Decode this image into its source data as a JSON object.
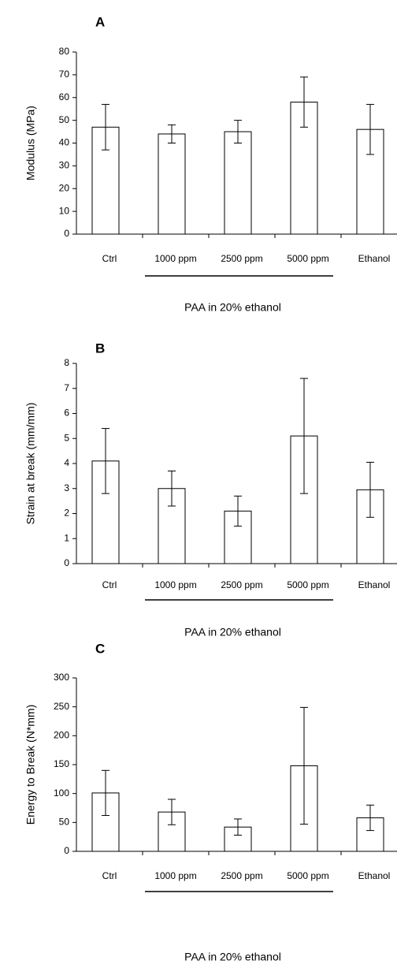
{
  "chart_data": [
    {
      "type": "bar",
      "panel_label": "A",
      "ylabel": "Modulus (MPa)",
      "categories": [
        "Ctrl",
        "1000 ppm",
        "2500 ppm",
        "5000 ppm",
        "Ethanol"
      ],
      "values": [
        47,
        44,
        45,
        58,
        46
      ],
      "error": [
        10,
        4,
        5,
        11,
        11
      ],
      "ylim": [
        0,
        80
      ],
      "yticks": [
        0,
        10,
        20,
        30,
        40,
        50,
        60,
        70,
        80
      ],
      "group_label": "PAA in 20% ethanol",
      "grid": false
    },
    {
      "type": "bar",
      "panel_label": "B",
      "ylabel": "Strain at break (mm/mm)",
      "categories": [
        "Ctrl",
        "1000 ppm",
        "2500 ppm",
        "5000 ppm",
        "Ethanol"
      ],
      "values": [
        4.1,
        3.0,
        2.1,
        5.1,
        2.95
      ],
      "error": [
        1.3,
        0.7,
        0.6,
        2.3,
        1.1
      ],
      "ylim": [
        0,
        8
      ],
      "yticks": [
        0,
        1,
        2,
        3,
        4,
        5,
        6,
        7,
        8
      ],
      "group_label": "PAA in 20% ethanol",
      "grid": false
    },
    {
      "type": "bar",
      "panel_label": "C",
      "ylabel": "Energy to Break (N*mm)",
      "categories": [
        "Ctrl",
        "1000 ppm",
        "2500 ppm",
        "5000 ppm",
        "Ethanol"
      ],
      "values": [
        101,
        68,
        42,
        148,
        58
      ],
      "error": [
        39,
        22,
        14,
        101,
        22
      ],
      "ylim": [
        0,
        300
      ],
      "yticks": [
        0,
        50,
        100,
        150,
        200,
        250,
        300
      ],
      "group_label": "PAA in 20% ethanol",
      "grid": false
    }
  ]
}
